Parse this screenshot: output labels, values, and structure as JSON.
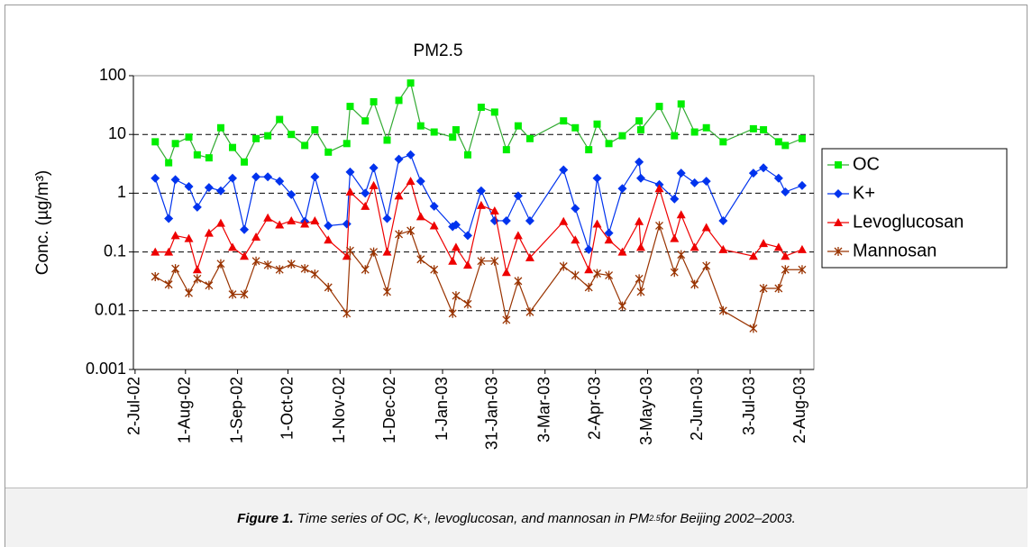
{
  "chart_data": {
    "type": "line",
    "title": "PM2.5",
    "ylabel": "Conc. (µg/m³)",
    "log_y": true,
    "grid": true,
    "legend": "right",
    "ylim": [
      0.001,
      100
    ],
    "yticks": [
      0.001,
      0.01,
      0.1,
      1,
      10,
      100
    ],
    "xlim": [
      "2002-07-01",
      "2003-08-10"
    ],
    "xticks": [
      {
        "value": "2002-07-02",
        "label": "2-Jul-02"
      },
      {
        "value": "2002-08-01",
        "label": "1-Aug-02"
      },
      {
        "value": "2002-09-01",
        "label": "1-Sep-02"
      },
      {
        "value": "2002-10-01",
        "label": "1-Oct-02"
      },
      {
        "value": "2002-11-01",
        "label": "1-Nov-02"
      },
      {
        "value": "2002-12-01",
        "label": "1-Dec-02"
      },
      {
        "value": "2003-01-01",
        "label": "1-Jan-03"
      },
      {
        "value": "2003-01-31",
        "label": "31-Jan-03"
      },
      {
        "value": "2003-03-03",
        "label": "3-Mar-03"
      },
      {
        "value": "2003-04-02",
        "label": "2-Apr-03"
      },
      {
        "value": "2003-05-03",
        "label": "3-May-03"
      },
      {
        "value": "2003-06-02",
        "label": "2-Jun-03"
      },
      {
        "value": "2003-07-03",
        "label": "3-Jul-03"
      },
      {
        "value": "2003-08-02",
        "label": "2-Aug-03"
      }
    ],
    "x": [
      "2002-07-14",
      "2002-07-22",
      "2002-07-26",
      "2002-08-03",
      "2002-08-08",
      "2002-08-15",
      "2002-08-22",
      "2002-08-29",
      "2002-09-05",
      "2002-09-12",
      "2002-09-19",
      "2002-09-26",
      "2002-10-03",
      "2002-10-11",
      "2002-10-17",
      "2002-10-25",
      "2002-11-05",
      "2002-11-07",
      "2002-11-16",
      "2002-11-21",
      "2002-11-29",
      "2002-12-06",
      "2002-12-13",
      "2002-12-19",
      "2002-12-27",
      "2003-01-07",
      "2003-01-09",
      "2003-01-16",
      "2003-01-24",
      "2003-02-01",
      "2003-02-08",
      "2003-02-15",
      "2003-02-22",
      "2003-03-14",
      "2003-03-21",
      "2003-03-29",
      "2003-04-03",
      "2003-04-10",
      "2003-04-18",
      "2003-04-28",
      "2003-04-29",
      "2003-05-10",
      "2003-05-19",
      "2003-05-23",
      "2003-05-31",
      "2003-06-07",
      "2003-06-17",
      "2003-07-05",
      "2003-07-11",
      "2003-07-20",
      "2003-07-24",
      "2003-08-03"
    ],
    "series": [
      {
        "name": "OC",
        "color": "#00ee00",
        "line_color": "#33aa33",
        "marker": "square",
        "values": [
          7.5,
          3.3,
          7,
          9,
          4.5,
          4,
          13,
          6,
          3.4,
          8.5,
          9.5,
          18,
          10,
          6.5,
          12,
          5,
          7,
          30,
          17,
          36,
          8,
          38,
          75,
          14,
          11,
          9,
          12,
          4.5,
          29,
          24,
          5.5,
          14,
          8.5,
          17,
          13,
          5.5,
          15,
          7,
          9.5,
          17,
          12,
          30,
          9.5,
          33,
          11,
          13,
          7.5,
          12.5,
          12,
          7.5,
          6.5,
          8.5
        ]
      },
      {
        "name": "K+",
        "color": "#0033ee",
        "line_color": "#0033ee",
        "marker": "diamond",
        "values": [
          1.8,
          0.37,
          1.7,
          1.3,
          0.58,
          1.25,
          1.1,
          1.8,
          0.24,
          1.9,
          1.9,
          1.6,
          0.95,
          0.33,
          1.9,
          0.28,
          0.3,
          2.3,
          1.0,
          2.7,
          0.37,
          3.8,
          4.5,
          1.6,
          0.6,
          0.27,
          0.29,
          0.19,
          1.1,
          0.34,
          0.34,
          0.9,
          0.34,
          2.5,
          0.55,
          0.11,
          1.8,
          0.21,
          1.2,
          3.4,
          1.8,
          1.4,
          0.8,
          2.2,
          1.5,
          1.6,
          0.34,
          2.2,
          2.7,
          1.8,
          1.05,
          1.35
        ]
      },
      {
        "name": "Levoglucosan",
        "color": "#ee0000",
        "line_color": "#ee0000",
        "marker": "triangle",
        "values": [
          0.1,
          0.1,
          0.19,
          0.17,
          0.05,
          0.21,
          0.31,
          0.12,
          0.085,
          0.18,
          0.38,
          0.29,
          0.34,
          0.3,
          0.34,
          0.16,
          0.085,
          1.05,
          0.6,
          1.35,
          0.1,
          0.9,
          1.6,
          0.4,
          0.28,
          0.07,
          0.12,
          0.06,
          0.62,
          0.5,
          0.045,
          0.19,
          0.08,
          0.33,
          0.16,
          0.05,
          0.3,
          0.16,
          0.1,
          0.33,
          0.12,
          1.2,
          0.17,
          0.43,
          0.12,
          0.26,
          0.11,
          0.085,
          0.14,
          0.12,
          0.085,
          0.11
        ]
      },
      {
        "name": "Mannosan",
        "color": "#993300",
        "line_color": "#993300",
        "marker": "star",
        "values": [
          0.038,
          0.028,
          0.052,
          0.02,
          0.035,
          0.027,
          0.063,
          0.019,
          0.019,
          0.07,
          0.06,
          0.05,
          0.062,
          0.052,
          0.042,
          0.025,
          0.009,
          0.105,
          0.05,
          0.1,
          0.021,
          0.2,
          0.23,
          0.075,
          0.05,
          0.009,
          0.018,
          0.013,
          0.07,
          0.07,
          0.007,
          0.032,
          0.0095,
          0.057,
          0.04,
          0.025,
          0.043,
          0.04,
          0.012,
          0.035,
          0.021,
          0.28,
          0.045,
          0.09,
          0.028,
          0.058,
          0.01,
          0.005,
          0.024,
          0.024,
          0.05,
          0.05
        ]
      }
    ]
  },
  "caption": {
    "label": "Figure 1.",
    "parts": [
      "Time series of OC, K",
      "+",
      ", levoglucosan, and mannosan in PM",
      "2.5",
      " for Beijing 2002–2003."
    ]
  }
}
